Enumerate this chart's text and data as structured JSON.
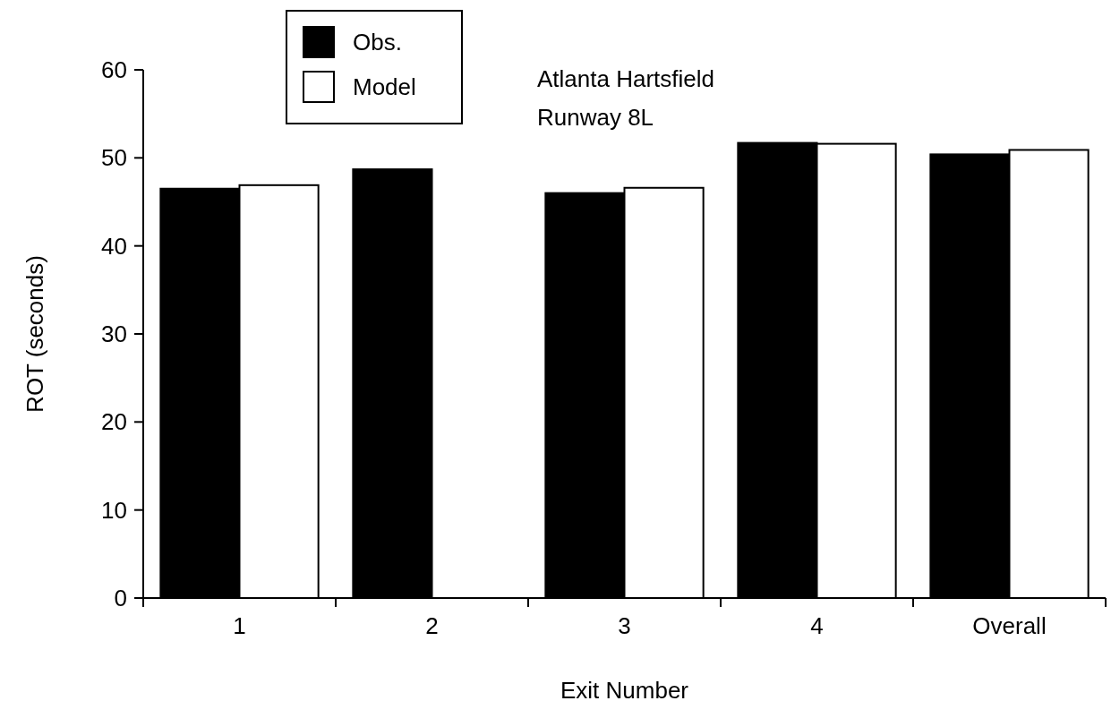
{
  "chart_data": {
    "type": "bar",
    "categories": [
      "1",
      "2",
      "3",
      "4",
      "Overall"
    ],
    "series": [
      {
        "name": "Obs.",
        "color": "#000000",
        "values": [
          46.5,
          48.7,
          46.0,
          51.7,
          50.4
        ]
      },
      {
        "name": "Model",
        "color": "#ffffff",
        "values": [
          46.9,
          null,
          46.6,
          51.6,
          50.9
        ]
      }
    ],
    "xlabel": "Exit Number",
    "ylabel": "ROT (seconds)",
    "ylim": [
      0,
      60
    ],
    "yticks": [
      0,
      10,
      20,
      30,
      40,
      50,
      60
    ],
    "annotations": [
      "Atlanta Hartsfield",
      "Runway 8L"
    ],
    "legend": "top left",
    "grid": false
  }
}
